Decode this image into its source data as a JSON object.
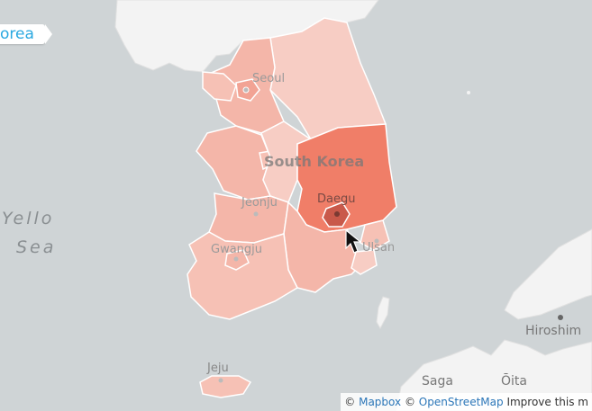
{
  "breadcrumb": {
    "label": "orea"
  },
  "places": {
    "seoul": "Seoul",
    "south_korea": "South Korea",
    "daegu": "Daegu",
    "jeonju": "Jeonju",
    "gwangju": "Gwangju",
    "ulsan": "Ulsan",
    "jeju": "Jeju",
    "yellow_sea_line1": "Yello",
    "yellow_sea_line2": "Sea",
    "hiroshima": "Hiroshim",
    "saga": "Saga",
    "oita": "Ōita"
  },
  "attribution": {
    "copyright_symbol_1": "©",
    "mapbox_link": "Mapbox",
    "copyright_symbol_2": "©",
    "osm_link": "OpenStreetMap",
    "improve_link": "Improve this m"
  },
  "colors": {
    "water": "#cfd4d6",
    "land": "#f3f3f3",
    "region_light": "#f7cdc4",
    "region_mid": "#f4b6a9",
    "region_highlight": "#f07e68",
    "region_dark": "#c9594a"
  }
}
